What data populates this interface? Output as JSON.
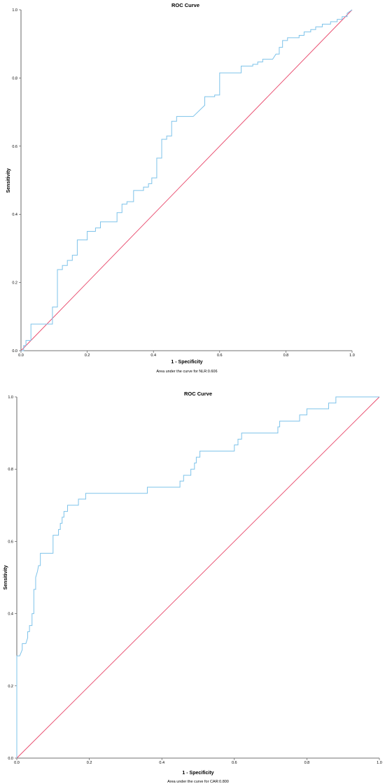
{
  "chart_data": [
    {
      "type": "line",
      "title": "ROC Curve",
      "xlabel": "1 - Specificity",
      "ylabel": "Sensitivity",
      "footnote": "Area under the curve for NLR:0.606",
      "xlim": [
        0,
        1
      ],
      "ylim": [
        0,
        1
      ],
      "x_ticks": [
        "0.0",
        "0.2",
        "0.4",
        "0.6",
        "0.8",
        "1.0"
      ],
      "y_ticks": [
        "0.0",
        "0.2",
        "0.4",
        "0.6",
        "0.8",
        "1.0"
      ],
      "grid": false,
      "colors": {
        "roc": "#7ec3ea",
        "reference": "#e8476a"
      },
      "series": [
        {
          "values": [
            [
              0.0,
              0.0
            ],
            [
              0.008,
              0.0
            ],
            [
              0.008,
              0.015
            ],
            [
              0.015,
              0.015
            ],
            [
              0.015,
              0.03
            ],
            [
              0.03,
              0.03
            ],
            [
              0.03,
              0.078
            ],
            [
              0.095,
              0.078
            ],
            [
              0.095,
              0.128
            ],
            [
              0.11,
              0.128
            ],
            [
              0.11,
              0.238
            ],
            [
              0.125,
              0.238
            ],
            [
              0.125,
              0.25
            ],
            [
              0.14,
              0.25
            ],
            [
              0.14,
              0.265
            ],
            [
              0.155,
              0.265
            ],
            [
              0.155,
              0.28
            ],
            [
              0.17,
              0.28
            ],
            [
              0.17,
              0.325
            ],
            [
              0.2,
              0.325
            ],
            [
              0.2,
              0.35
            ],
            [
              0.225,
              0.35
            ],
            [
              0.225,
              0.36
            ],
            [
              0.24,
              0.36
            ],
            [
              0.24,
              0.378
            ],
            [
              0.29,
              0.378
            ],
            [
              0.29,
              0.405
            ],
            [
              0.305,
              0.405
            ],
            [
              0.305,
              0.43
            ],
            [
              0.32,
              0.43
            ],
            [
              0.32,
              0.437
            ],
            [
              0.34,
              0.437
            ],
            [
              0.34,
              0.47
            ],
            [
              0.37,
              0.47
            ],
            [
              0.37,
              0.48
            ],
            [
              0.385,
              0.48
            ],
            [
              0.385,
              0.49
            ],
            [
              0.395,
              0.49
            ],
            [
              0.395,
              0.507
            ],
            [
              0.41,
              0.507
            ],
            [
              0.41,
              0.565
            ],
            [
              0.425,
              0.565
            ],
            [
              0.425,
              0.62
            ],
            [
              0.44,
              0.62
            ],
            [
              0.44,
              0.63
            ],
            [
              0.455,
              0.63
            ],
            [
              0.455,
              0.673
            ],
            [
              0.47,
              0.673
            ],
            [
              0.47,
              0.687
            ],
            [
              0.52,
              0.687
            ],
            [
              0.555,
              0.72
            ],
            [
              0.555,
              0.745
            ],
            [
              0.585,
              0.745
            ],
            [
              0.585,
              0.75
            ],
            [
              0.6,
              0.75
            ],
            [
              0.6,
              0.815
            ],
            [
              0.665,
              0.815
            ],
            [
              0.665,
              0.835
            ],
            [
              0.7,
              0.835
            ],
            [
              0.7,
              0.84
            ],
            [
              0.715,
              0.84
            ],
            [
              0.715,
              0.847
            ],
            [
              0.73,
              0.847
            ],
            [
              0.73,
              0.855
            ],
            [
              0.76,
              0.855
            ],
            [
              0.77,
              0.87
            ],
            [
              0.78,
              0.87
            ],
            [
              0.78,
              0.89
            ],
            [
              0.79,
              0.89
            ],
            [
              0.79,
              0.91
            ],
            [
              0.805,
              0.91
            ],
            [
              0.805,
              0.918
            ],
            [
              0.84,
              0.918
            ],
            [
              0.84,
              0.925
            ],
            [
              0.855,
              0.925
            ],
            [
              0.855,
              0.935
            ],
            [
              0.875,
              0.935
            ],
            [
              0.875,
              0.942
            ],
            [
              0.89,
              0.942
            ],
            [
              0.89,
              0.95
            ],
            [
              0.91,
              0.95
            ],
            [
              0.91,
              0.958
            ],
            [
              0.935,
              0.958
            ],
            [
              0.935,
              0.965
            ],
            [
              0.955,
              0.965
            ],
            [
              0.955,
              0.972
            ],
            [
              0.97,
              0.972
            ],
            [
              0.97,
              0.98
            ],
            [
              0.985,
              0.98
            ],
            [
              0.985,
              0.99
            ],
            [
              1.0,
              1.0
            ]
          ]
        },
        {
          "values": [
            [
              0,
              0
            ],
            [
              1,
              1
            ]
          ]
        }
      ]
    },
    {
      "type": "line",
      "title": "ROC Curve",
      "xlabel": "1 - Specificity",
      "ylabel": "Sensitivity",
      "footnote": "Area under the curve for CAR:0.800",
      "xlim": [
        0,
        1
      ],
      "ylim": [
        0,
        1
      ],
      "x_ticks": [
        "0.0",
        "0.2",
        "0.4",
        "0.6",
        "0.8",
        "1.0"
      ],
      "y_ticks": [
        "0.0",
        "0.2",
        "0.4",
        "0.6",
        "0.8",
        "1.0"
      ],
      "grid": false,
      "colors": {
        "roc": "#7ec3ea",
        "reference": "#e8476a"
      },
      "series": [
        {
          "values": [
            [
              0.0,
              0.0
            ],
            [
              0.0,
              0.283
            ],
            [
              0.008,
              0.283
            ],
            [
              0.015,
              0.3
            ],
            [
              0.015,
              0.317
            ],
            [
              0.025,
              0.317
            ],
            [
              0.03,
              0.333
            ],
            [
              0.03,
              0.35
            ],
            [
              0.035,
              0.35
            ],
            [
              0.035,
              0.367
            ],
            [
              0.042,
              0.367
            ],
            [
              0.042,
              0.4
            ],
            [
              0.047,
              0.4
            ],
            [
              0.047,
              0.467
            ],
            [
              0.052,
              0.467
            ],
            [
              0.052,
              0.5
            ],
            [
              0.057,
              0.517
            ],
            [
              0.06,
              0.533
            ],
            [
              0.065,
              0.533
            ],
            [
              0.065,
              0.567
            ],
            [
              0.1,
              0.567
            ],
            [
              0.1,
              0.617
            ],
            [
              0.115,
              0.617
            ],
            [
              0.115,
              0.633
            ],
            [
              0.12,
              0.633
            ],
            [
              0.12,
              0.65
            ],
            [
              0.125,
              0.65
            ],
            [
              0.125,
              0.667
            ],
            [
              0.13,
              0.667
            ],
            [
              0.13,
              0.683
            ],
            [
              0.14,
              0.683
            ],
            [
              0.14,
              0.7
            ],
            [
              0.17,
              0.7
            ],
            [
              0.17,
              0.717
            ],
            [
              0.19,
              0.717
            ],
            [
              0.19,
              0.733
            ],
            [
              0.36,
              0.733
            ],
            [
              0.36,
              0.75
            ],
            [
              0.45,
              0.75
            ],
            [
              0.45,
              0.767
            ],
            [
              0.46,
              0.767
            ],
            [
              0.46,
              0.783
            ],
            [
              0.48,
              0.783
            ],
            [
              0.48,
              0.8
            ],
            [
              0.49,
              0.8
            ],
            [
              0.49,
              0.817
            ],
            [
              0.495,
              0.817
            ],
            [
              0.495,
              0.833
            ],
            [
              0.505,
              0.833
            ],
            [
              0.505,
              0.85
            ],
            [
              0.6,
              0.85
            ],
            [
              0.6,
              0.867
            ],
            [
              0.61,
              0.867
            ],
            [
              0.61,
              0.883
            ],
            [
              0.62,
              0.883
            ],
            [
              0.62,
              0.9
            ],
            [
              0.72,
              0.9
            ],
            [
              0.72,
              0.917
            ],
            [
              0.725,
              0.917
            ],
            [
              0.725,
              0.933
            ],
            [
              0.78,
              0.933
            ],
            [
              0.78,
              0.95
            ],
            [
              0.8,
              0.95
            ],
            [
              0.8,
              0.967
            ],
            [
              0.86,
              0.967
            ],
            [
              0.86,
              0.983
            ],
            [
              0.88,
              0.983
            ],
            [
              0.88,
              1.0
            ],
            [
              1.0,
              1.0
            ]
          ]
        },
        {
          "values": [
            [
              0,
              0
            ],
            [
              1,
              1
            ]
          ]
        }
      ]
    }
  ]
}
